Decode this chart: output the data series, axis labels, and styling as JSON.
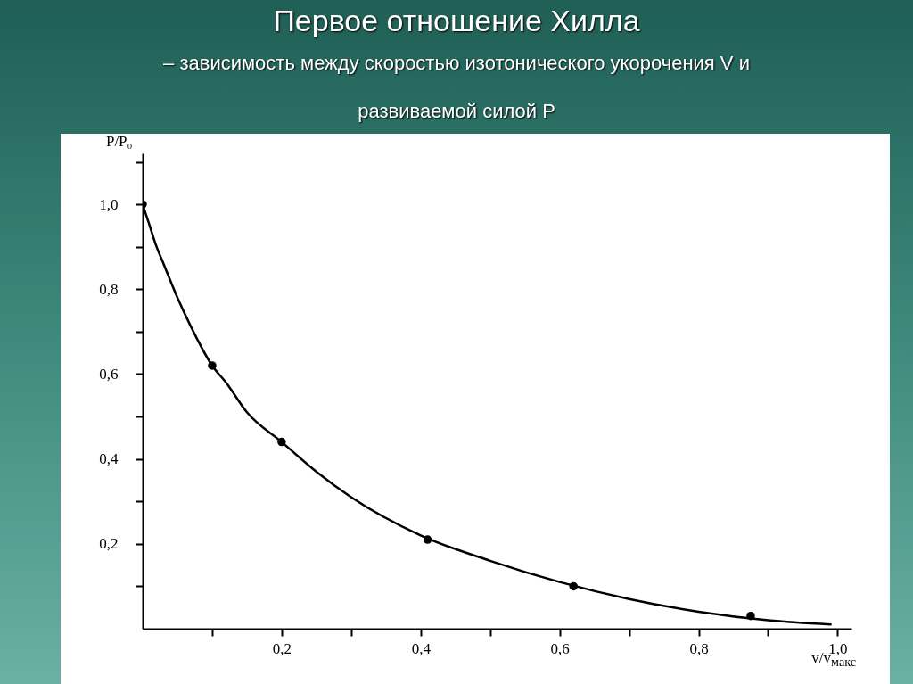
{
  "chart_data": {
    "type": "line",
    "title": "Первое отношение Хилла",
    "subtitle": "– зависимость между скоростью изотонического укорочения V и развиваемой силой P",
    "xlabel": "v/v$_{макс}$",
    "ylabel": "P/P₀",
    "xlim": [
      0,
      1.02
    ],
    "ylim": [
      0,
      1.12
    ],
    "xticks": [
      {
        "value": 0.1,
        "label": null
      },
      {
        "value": 0.2,
        "label": "0,2"
      },
      {
        "value": 0.3,
        "label": null
      },
      {
        "value": 0.4,
        "label": "0,4"
      },
      {
        "value": 0.5,
        "label": null
      },
      {
        "value": 0.6,
        "label": "0,6"
      },
      {
        "value": 0.7,
        "label": null
      },
      {
        "value": 0.8,
        "label": "0,8"
      },
      {
        "value": 0.9,
        "label": null
      },
      {
        "value": 1.0,
        "label": "1,0"
      }
    ],
    "yticks": [
      {
        "value": 0.1,
        "label": null
      },
      {
        "value": 0.2,
        "label": "0,2"
      },
      {
        "value": 0.3,
        "label": null
      },
      {
        "value": 0.4,
        "label": "0,4"
      },
      {
        "value": 0.5,
        "label": null
      },
      {
        "value": 0.6,
        "label": "0,6"
      },
      {
        "value": 0.7,
        "label": null
      },
      {
        "value": 0.8,
        "label": "0,8"
      },
      {
        "value": 0.9,
        "label": null
      },
      {
        "value": 1.0,
        "label": "1,0"
      },
      {
        "value": 1.1,
        "label": null
      }
    ],
    "grid": false,
    "series": [
      {
        "type": "line",
        "color": "#000000",
        "line_style": "solid",
        "x": [
          0,
          0.01,
          0.02,
          0.03,
          0.05,
          0.07,
          0.1,
          0.12,
          0.15,
          0.2,
          0.25,
          0.3,
          0.4,
          0.5,
          0.6,
          0.7,
          0.8,
          0.9,
          0.99
        ],
        "values": [
          1.0,
          0.95,
          0.9,
          0.86,
          0.78,
          0.71,
          0.62,
          0.58,
          0.51,
          0.44,
          0.37,
          0.31,
          0.22,
          0.16,
          0.11,
          0.07,
          0.04,
          0.02,
          0.01
        ]
      },
      {
        "type": "scatter",
        "color": "#000000",
        "marker": "circle",
        "x": [
          0,
          0.1,
          0.2,
          0.41,
          0.62,
          0.875
        ],
        "values": [
          1.0,
          0.62,
          0.44,
          0.21,
          0.1,
          0.03
        ]
      }
    ]
  }
}
